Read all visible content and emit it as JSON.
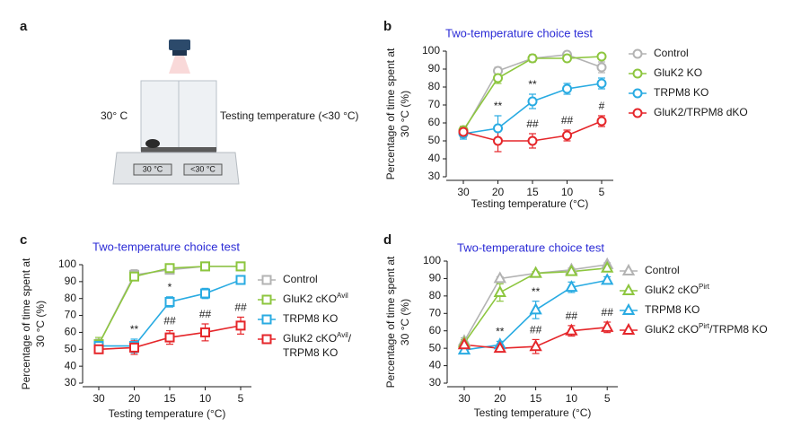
{
  "illustration": {
    "panel_label": "a",
    "left_label": "30° C",
    "right_label": "Testing temperature (<30 °C)",
    "plate_left": "30 °C",
    "plate_right": "<30 °C"
  },
  "chart_data": [
    {
      "type": "line",
      "panel_label": "b",
      "title": "Two-temperature choice test",
      "marker": "circle",
      "xlabel": "Testing temperature (°C)",
      "ylabel": [
        "Percentage of time spent at",
        "30 °C (%)"
      ],
      "categories": [
        "30",
        "20",
        "15",
        "10",
        "5"
      ],
      "ylim": [
        30,
        100
      ],
      "yticks": [
        30,
        40,
        50,
        60,
        70,
        80,
        90,
        100
      ],
      "series": [
        {
          "name": "Control",
          "color": "#b3b3b3",
          "values": [
            55,
            89,
            96,
            98,
            91
          ],
          "errors": [
            2,
            2,
            1,
            1,
            3
          ]
        },
        {
          "name": "GluK2 KO",
          "color": "#8dc63f",
          "values": [
            56,
            85,
            96,
            96,
            97
          ],
          "errors": [
            2,
            3,
            2,
            1,
            1
          ]
        },
        {
          "name": "TRPM8 KO",
          "color": "#29abe2",
          "values": [
            54,
            57,
            72,
            79,
            82
          ],
          "errors": [
            3,
            7,
            4,
            3,
            3
          ],
          "significance": [
            null,
            "**",
            "**",
            null,
            null
          ]
        },
        {
          "name": "GluK2/TRPM8 dKO",
          "color": "#e5262a",
          "values": [
            55,
            50,
            50,
            53,
            61
          ],
          "errors": [
            3,
            6,
            4,
            3,
            3
          ],
          "significance": [
            null,
            null,
            "##",
            "##",
            "#"
          ]
        }
      ]
    },
    {
      "type": "line",
      "panel_label": "c",
      "title": "Two-temperature choice test",
      "marker": "square",
      "xlabel": "Testing temperature (°C)",
      "ylabel": [
        "Percentage of time spent at",
        "30 °C (%)"
      ],
      "categories": [
        "30",
        "20",
        "15",
        "10",
        "5"
      ],
      "ylim": [
        30,
        100
      ],
      "yticks": [
        30,
        40,
        50,
        60,
        70,
        80,
        90,
        100
      ],
      "series": [
        {
          "name": "Control",
          "color": "#b3b3b3",
          "values": [
            53,
            94,
            97,
            99,
            99
          ],
          "errors": [
            3,
            3,
            1,
            1,
            1
          ]
        },
        {
          "name": [
            [
              "GluK2 cKO",
              "Avil"
            ]
          ],
          "color": "#8dc63f",
          "values": [
            53,
            93,
            98,
            99,
            99
          ],
          "errors": [
            4,
            2,
            1,
            1,
            1
          ]
        },
        {
          "name": "TRPM8 KO",
          "color": "#29abe2",
          "values": [
            52,
            52,
            78,
            83,
            91
          ],
          "errors": [
            2,
            4,
            3,
            3,
            2
          ],
          "significance": [
            null,
            "**",
            "*",
            null,
            null
          ]
        },
        {
          "name": [
            [
              "GluK2 cKO",
              "Avil",
              "/"
            ],
            [
              "TRPM8 KO"
            ]
          ],
          "color": "#e5262a",
          "values": [
            50,
            51,
            57,
            60,
            64
          ],
          "errors": [
            2,
            4,
            4,
            5,
            5
          ],
          "significance": [
            null,
            null,
            "##",
            "##",
            "##"
          ]
        }
      ]
    },
    {
      "type": "line",
      "panel_label": "d",
      "title": "Two-temperature choice test",
      "marker": "triangle",
      "xlabel": "Testing temperature (°C)",
      "ylabel": [
        "Percentage of time spent at",
        "30 °C (%)"
      ],
      "categories": [
        "30",
        "20",
        "15",
        "10",
        "5"
      ],
      "ylim": [
        30,
        100
      ],
      "yticks": [
        30,
        40,
        50,
        60,
        70,
        80,
        90,
        100
      ],
      "series": [
        {
          "name": "Control",
          "color": "#b3b3b3",
          "values": [
            54,
            90,
            93,
            95,
            98
          ],
          "errors": [
            2,
            1,
            1,
            1,
            1
          ]
        },
        {
          "name": [
            [
              "GluK2 cKO",
              "Pirt"
            ]
          ],
          "color": "#8dc63f",
          "values": [
            53,
            82,
            93,
            94,
            96
          ],
          "errors": [
            2,
            5,
            1,
            1,
            1
          ]
        },
        {
          "name": "TRPM8 KO",
          "color": "#29abe2",
          "values": [
            49,
            52,
            72,
            85,
            89
          ],
          "errors": [
            1,
            2,
            5,
            3,
            2
          ],
          "significance": [
            null,
            "**",
            "**",
            null,
            null
          ]
        },
        {
          "name": [
            [
              "GluK2 cKO",
              "Pirt",
              "/TRPM8 KO"
            ]
          ],
          "color": "#e5262a",
          "values": [
            52,
            50,
            51,
            60,
            62
          ],
          "errors": [
            2,
            2,
            4,
            3,
            3
          ],
          "significance": [
            null,
            null,
            "##",
            "##",
            "##"
          ]
        }
      ]
    }
  ]
}
